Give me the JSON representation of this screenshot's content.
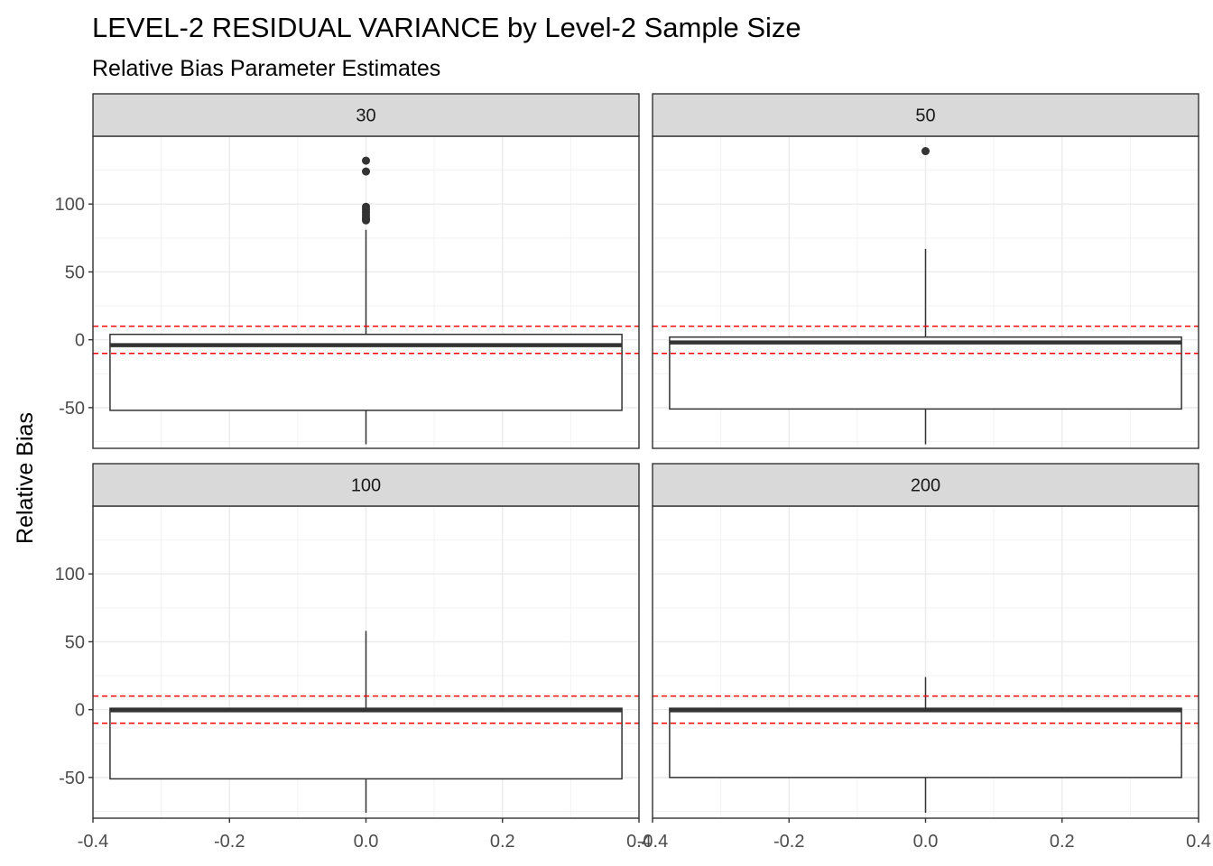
{
  "chart_data": {
    "type": "boxplot",
    "title": "LEVEL-2 RESIDUAL VARIANCE by Level-2 Sample Size",
    "subtitle": "Relative Bias Parameter Estimates",
    "xlabel": "",
    "ylabel": "Relative Bias",
    "xlim": [
      -0.4,
      0.4
    ],
    "ylim": [
      -80,
      150
    ],
    "x_ticks": [
      -0.4,
      -0.2,
      0.0,
      0.2,
      0.4
    ],
    "x_tick_labels": [
      "-0.4",
      "-0.2",
      "0.0",
      "0.2",
      "0.4"
    ],
    "y_ticks": [
      -50,
      0,
      50,
      100
    ],
    "y_tick_labels": [
      "-50",
      "0",
      "50",
      "100"
    ],
    "grid": true,
    "box_x_range": [
      -0.375,
      0.375
    ],
    "reference_lines": {
      "values": [
        10,
        -10
      ],
      "color": "#ff0000",
      "style": "dashed"
    },
    "box_color": "#333333",
    "outlier_color": "#333333",
    "panels": [
      {
        "label": "30",
        "lower_whisker": -77,
        "q1": -52,
        "median": -4,
        "q3": 4,
        "upper_whisker": 81,
        "outliers": [
          132,
          124,
          98,
          96,
          94,
          92,
          90,
          89,
          88
        ]
      },
      {
        "label": "50",
        "lower_whisker": -77,
        "q1": -51,
        "median": -2,
        "q3": 2,
        "upper_whisker": 67,
        "outliers": [
          139
        ]
      },
      {
        "label": "100",
        "lower_whisker": -76,
        "q1": -51,
        "median": -0.5,
        "q3": 1,
        "upper_whisker": 58,
        "outliers": []
      },
      {
        "label": "200",
        "lower_whisker": -76,
        "q1": -50,
        "median": -0.5,
        "q3": 1,
        "upper_whisker": 24,
        "outliers": []
      }
    ]
  }
}
